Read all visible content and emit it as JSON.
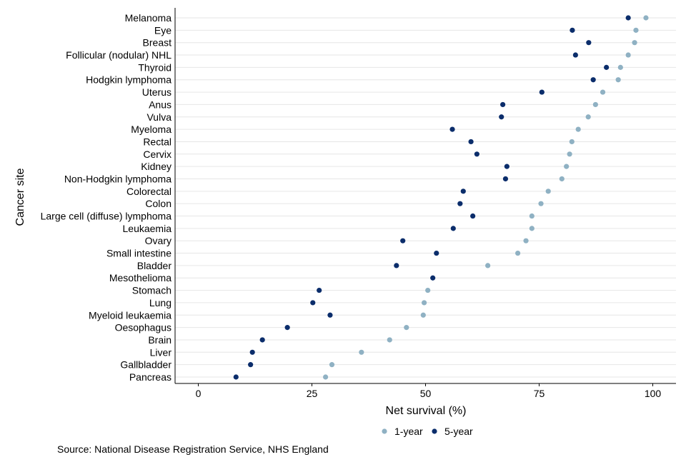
{
  "chart_data": {
    "type": "scatter",
    "xlabel": "Net survival (%)",
    "ylabel": "Cancer site",
    "xlim": [
      0,
      100
    ],
    "xticks": [
      0,
      25,
      50,
      75,
      100
    ],
    "grid": true,
    "legend_position": "bottom",
    "categories": [
      "Melanoma",
      "Eye",
      "Breast",
      "Follicular (nodular) NHL",
      "Thyroid",
      "Hodgkin lymphoma",
      "Uterus",
      "Anus",
      "Vulva",
      "Myeloma",
      "Rectal",
      "Cervix",
      "Kidney",
      "Non-Hodgkin lymphoma",
      "Colorectal",
      "Colon",
      "Large cell (diffuse) lymphoma",
      "Leukaemia",
      "Ovary",
      "Small intestine",
      "Bladder",
      "Mesothelioma",
      "Stomach",
      "Lung",
      "Myeloid leukaemia",
      "Oesophagus",
      "Brain",
      "Liver",
      "Gallbladder",
      "Pancreas"
    ],
    "series": [
      {
        "name": "1-year",
        "color": "#8fb1c3",
        "values": [
          98.5,
          96.3,
          96.0,
          94.6,
          92.9,
          92.4,
          89.0,
          87.4,
          85.8,
          83.6,
          82.2,
          81.7,
          81.0,
          80.0,
          77.0,
          75.4,
          73.4,
          73.4,
          72.1,
          70.3,
          63.7,
          null,
          50.5,
          49.7,
          49.5,
          45.8,
          42.1,
          35.9,
          29.4,
          28.0
        ]
      },
      {
        "name": "5-year",
        "color": "#0b2d6b",
        "values": [
          94.6,
          82.3,
          85.9,
          83.0,
          89.8,
          86.9,
          75.6,
          67.0,
          66.7,
          55.9,
          60.0,
          61.3,
          67.9,
          67.6,
          58.3,
          57.6,
          60.4,
          56.1,
          45.0,
          52.4,
          43.6,
          51.6,
          26.6,
          25.2,
          29.0,
          19.6,
          14.1,
          11.9,
          11.5,
          8.3
        ]
      }
    ]
  },
  "source": "Source: National Disease Registration Service, NHS England"
}
